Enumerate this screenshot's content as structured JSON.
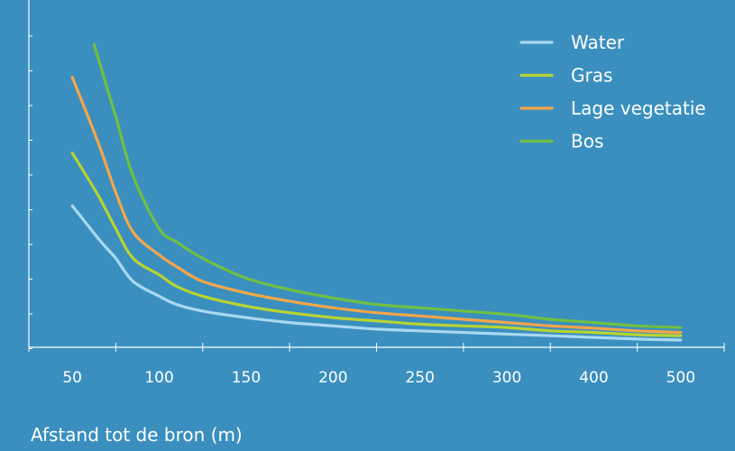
{
  "chart_data": {
    "type": "line",
    "xlabel": "Afstand tot de bron (m)",
    "ylabel": "",
    "categories": [
      "50",
      "100",
      "150",
      "200",
      "250",
      "300",
      "400",
      "500"
    ],
    "x_range": [
      0,
      8
    ],
    "ylim": [
      0,
      100
    ],
    "legend_position": "top-right",
    "series": [
      {
        "name": "Water",
        "color": "#a9d8f2",
        "x": [
          0.5,
          0.8,
          1.0,
          1.2,
          1.5,
          1.7,
          2.0,
          2.5,
          3.0,
          3.5,
          4.0,
          4.5,
          5.0,
          5.5,
          6.0,
          6.5,
          7.0,
          7.5
        ],
        "y": [
          43,
          33,
          27,
          20,
          15.5,
          13,
          11,
          9,
          7.5,
          6.5,
          5.5,
          5,
          4.5,
          4,
          3.5,
          3,
          2.5,
          2.2
        ]
      },
      {
        "name": "Gras",
        "color": "#b8d432",
        "x": [
          0.5,
          0.8,
          1.0,
          1.2,
          1.5,
          1.7,
          2.0,
          2.5,
          3.0,
          3.5,
          4.0,
          4.5,
          5.0,
          5.5,
          6.0,
          6.5,
          7.0,
          7.5
        ],
        "y": [
          59,
          46,
          36,
          27,
          22,
          18.5,
          15.5,
          12.5,
          10.5,
          9,
          8,
          7,
          6.5,
          6,
          5,
          4.5,
          3.8,
          3.5
        ]
      },
      {
        "name": "Lage vegetatie",
        "color": "#f5a54a",
        "x": [
          0.5,
          0.8,
          1.0,
          1.2,
          1.5,
          1.7,
          2.0,
          2.5,
          3.0,
          3.5,
          4.0,
          4.5,
          5.0,
          5.5,
          6.0,
          6.5,
          7.0,
          7.5
        ],
        "y": [
          82,
          62,
          47,
          35,
          28,
          24.5,
          20,
          16.5,
          14,
          12,
          10.5,
          9.5,
          8.5,
          7.5,
          6.5,
          5.8,
          5,
          4.5
        ]
      },
      {
        "name": "Bos",
        "color": "#6fbf44",
        "x": [
          0.75,
          1.0,
          1.2,
          1.5,
          1.7,
          2.0,
          2.5,
          3.0,
          3.5,
          4.0,
          4.5,
          5.0,
          5.5,
          6.0,
          6.5,
          7.0,
          7.5
        ],
        "y": [
          92,
          70,
          52,
          36,
          32,
          27,
          21,
          17.5,
          15,
          13,
          12,
          11,
          10,
          8.5,
          7.5,
          6.5,
          6
        ]
      }
    ]
  }
}
